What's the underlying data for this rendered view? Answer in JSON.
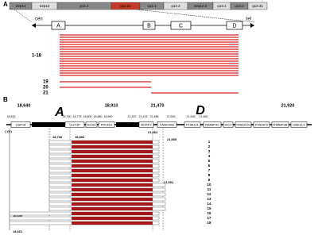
{
  "panel_a": {
    "label": "A",
    "bands": [
      "22p13",
      "22p12",
      "p11.2",
      "q11.21",
      "q12.1",
      "q12.2",
      "22q12.3",
      "q13.1",
      "q13.2",
      "q13.31"
    ],
    "cen": "cen",
    "tel": "tel",
    "lcrs": [
      "A",
      "B",
      "C",
      "D"
    ],
    "group_labels": [
      "1-18",
      "19",
      "20",
      "21"
    ]
  },
  "panel_b": {
    "label": "B",
    "major_coords": [
      "18,640",
      "18,910",
      "21,470",
      "21,920"
    ],
    "lcr_labels": [
      "A",
      "D"
    ],
    "minor_coords": [
      "18,632",
      "18,760",
      "18,775",
      "18,800",
      "18,880",
      "18,890",
      "21,457",
      "21,476",
      "21,486",
      "21,545",
      "21,626",
      "21,682"
    ],
    "genes": [
      "USP18",
      "GGT3P",
      "DGS6",
      "PRODH",
      "BCRP2",
      "FAM230B",
      "POM121",
      "RIMBP3C",
      "HIC2",
      "TMEM191",
      "PI4KAP2",
      "RIMBP3B",
      "UBE2L3"
    ],
    "cen": "cen",
    "breakpoints": [
      "18,706",
      "18,894",
      "21,464",
      "21,505",
      "21,501",
      "18,655",
      "18,661"
    ],
    "rows": [
      "1",
      "2",
      "3",
      "4",
      "5",
      "6",
      "7",
      "8",
      "9",
      "10",
      "11",
      "12",
      "13",
      "14",
      "15",
      "16",
      "17",
      "18"
    ]
  }
}
